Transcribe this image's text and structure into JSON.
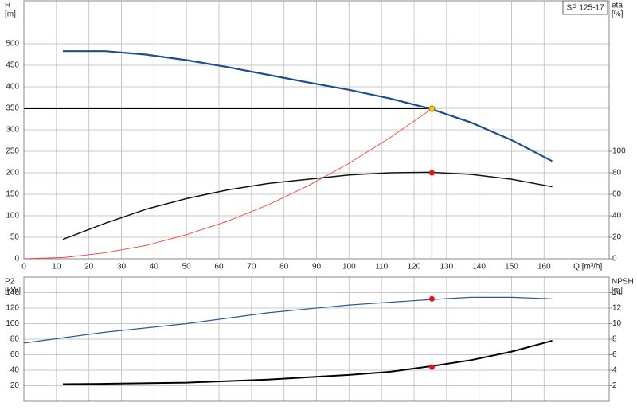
{
  "chart_data": [
    {
      "type": "line",
      "title": "SP 125-17",
      "xlabel": "Q [m³/h]",
      "ylabel": [
        "H",
        "[m]"
      ],
      "y2label": [
        "eta",
        "[%]"
      ],
      "xlim": [
        0,
        180
      ],
      "xticks": [
        0,
        10,
        20,
        30,
        40,
        50,
        60,
        70,
        80,
        90,
        100,
        110,
        120,
        130,
        140,
        150,
        160
      ],
      "show_xtick_labels": true,
      "ylim": [
        0,
        600
      ],
      "yticks": [
        0,
        50,
        100,
        150,
        200,
        250,
        300,
        350,
        400,
        450,
        500
      ],
      "y2lim": [
        0,
        240
      ],
      "y2ticks": [
        0,
        20,
        40,
        60,
        80,
        100
      ],
      "grid": true,
      "guide_lines": true,
      "series": [
        {
          "color": "#1f4e8c",
          "width": 2.2,
          "x": [
            12,
            25,
            37.5,
            50,
            62.5,
            75,
            87.5,
            100,
            112.5,
            125,
            137.5,
            150,
            162.5
          ],
          "values": [
            483,
            483,
            475,
            462,
            446,
            428,
            410,
            393,
            373,
            349,
            317,
            276,
            227
          ]
        },
        {
          "color": "#ff3b3b",
          "width": 0.9,
          "x": [
            0,
            12.5,
            25,
            37.5,
            50,
            62.5,
            75,
            87.5,
            100,
            112.5,
            125.5
          ],
          "values": [
            0,
            3,
            14,
            31,
            56,
            87,
            125,
            170,
            222,
            281,
            349
          ]
        },
        {
          "color": "#111111",
          "width": 1.5,
          "axis": "y2",
          "x": [
            12,
            25,
            37.5,
            50,
            62.5,
            75,
            87.5,
            100,
            112.5,
            125,
            137.5,
            150,
            162.5
          ],
          "values": [
            18,
            33,
            46,
            56,
            64,
            70,
            74,
            78,
            80,
            80.5,
            78.5,
            74,
            67
          ]
        }
      ],
      "markers": [
        {
          "x": 125.5,
          "y": 349,
          "color": "#f5c518"
        },
        {
          "x": 125.5,
          "y": 80,
          "axis": "y2",
          "color": "#ee1111"
        }
      ]
    },
    {
      "type": "line",
      "ylabel": [
        "P2",
        "[kW]"
      ],
      "y2label": [
        "NPSH",
        "[m]"
      ],
      "xlim": [
        0,
        180
      ],
      "xticks": [
        0,
        10,
        20,
        30,
        40,
        50,
        60,
        70,
        80,
        90,
        100,
        110,
        120,
        130,
        140,
        150,
        160
      ],
      "show_xtick_labels": false,
      "ylim": [
        0,
        160
      ],
      "yticks": [
        20,
        40,
        60,
        80,
        100,
        120,
        140
      ],
      "y2lim": [
        0,
        16
      ],
      "y2ticks": [
        2,
        4,
        6,
        8,
        10,
        12,
        14
      ],
      "grid": true,
      "guide_lines": false,
      "series": [
        {
          "color": "#2a5a9a",
          "width": 1.2,
          "x": [
            0,
            25,
            50,
            75,
            100,
            125,
            137.5,
            150,
            162.5
          ],
          "values": [
            75,
            89,
            100,
            114,
            124,
            131,
            134,
            134,
            132
          ]
        },
        {
          "color": "#000000",
          "width": 2,
          "axis": "y2",
          "x": [
            12,
            25,
            50,
            75,
            100,
            112.5,
            125,
            137.5,
            150,
            162.5
          ],
          "values": [
            2.2,
            2.25,
            2.4,
            2.8,
            3.4,
            3.8,
            4.5,
            5.3,
            6.4,
            7.8
          ]
        }
      ],
      "markers": [
        {
          "x": 125.5,
          "y": 132,
          "color": "#ee1111"
        },
        {
          "x": 125.5,
          "y": 4.4,
          "axis": "y2",
          "color": "#ee1111"
        }
      ]
    }
  ]
}
